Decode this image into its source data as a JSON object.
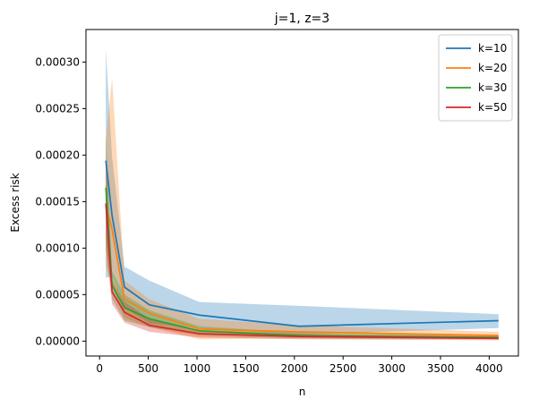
{
  "chart_data": {
    "type": "line",
    "title": "j=1, z=3",
    "xlabel": "n",
    "ylabel": "Excess risk",
    "xlim": [
      -140,
      4300
    ],
    "ylim": [
      -1.6e-05,
      0.000335
    ],
    "x": [
      64,
      128,
      256,
      512,
      1024,
      2048,
      4096
    ],
    "xticks": [
      0,
      500,
      1000,
      1500,
      2000,
      2500,
      3000,
      3500,
      4000
    ],
    "xtick_labels": [
      "0",
      "500",
      "1000",
      "1500",
      "2000",
      "2500",
      "3000",
      "3500",
      "4000"
    ],
    "yticks": [
      0.0,
      5e-05,
      0.0001,
      0.00015,
      0.0002,
      0.00025,
      0.0003
    ],
    "ytick_labels": [
      "0.00000",
      "0.00005",
      "0.00010",
      "0.00015",
      "0.00020",
      "0.00025",
      "0.00030"
    ],
    "grid": false,
    "legend_position": "top-right",
    "series": [
      {
        "name": "k=10",
        "color": "#1f77b4",
        "values": [
          0.000194,
          0.000135,
          5.8e-05,
          3.9e-05,
          2.8e-05,
          1.6e-05,
          2.2e-05
        ],
        "lower": [
          6.8e-05,
          7e-05,
          3.6e-05,
          1.9e-05,
          1.4e-05,
          7e-06,
          1.4e-05
        ],
        "upper": [
          0.000315,
          0.000198,
          8e-05,
          6.5e-05,
          4.2e-05,
          3.8e-05,
          2.9e-05
        ]
      },
      {
        "name": "k=20",
        "color": "#ff7f0e",
        "values": [
          0.000148,
          0.00012,
          4.5e-05,
          3e-05,
          1.3e-05,
          1e-05,
          6e-06
        ],
        "lower": [
          8e-05,
          6e-05,
          2.5e-05,
          1.5e-05,
          2e-06,
          3e-06,
          2e-06
        ],
        "upper": [
          0.000215,
          0.000283,
          6.5e-05,
          4.5e-05,
          2.4e-05,
          1.7e-05,
          1e-05
        ]
      },
      {
        "name": "k=30",
        "color": "#2ca02c",
        "values": [
          0.000165,
          6e-05,
          3.6e-05,
          2.4e-05,
          1.1e-05,
          6e-06,
          4e-06
        ],
        "lower": [
          0.00011,
          4.5e-05,
          2.2e-05,
          1.5e-05,
          6e-06,
          3e-06,
          2e-06
        ],
        "upper": [
          0.00022,
          7.5e-05,
          5e-05,
          3.3e-05,
          1.6e-05,
          9e-06,
          6e-06
        ]
      },
      {
        "name": "k=50",
        "color": "#d62728",
        "values": [
          0.000148,
          5.3e-05,
          3.1e-05,
          1.7e-05,
          8e-06,
          5e-06,
          3e-06
        ],
        "lower": [
          0.0001,
          4e-05,
          2e-05,
          1e-05,
          4e-06,
          2e-06,
          1e-06
        ],
        "upper": [
          0.000195,
          6.6e-05,
          4.2e-05,
          2.4e-05,
          1.2e-05,
          8e-06,
          5e-06
        ]
      }
    ]
  }
}
